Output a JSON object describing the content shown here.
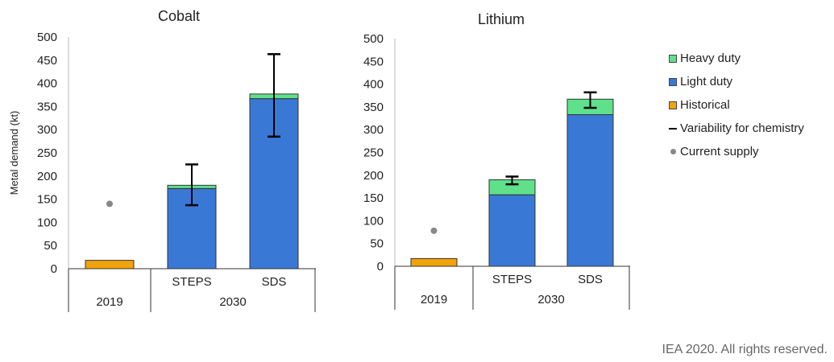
{
  "chart_data": [
    {
      "type": "bar",
      "title": "Cobalt",
      "ylabel": "Metal demand (kt)",
      "ylim": [
        0,
        500
      ],
      "yticks": [
        0,
        50,
        100,
        150,
        200,
        250,
        300,
        350,
        400,
        450,
        500
      ],
      "categories": [
        "",
        "STEPS",
        "SDS"
      ],
      "groups": [
        {
          "label": "2019",
          "categories": [
            ""
          ]
        },
        {
          "label": "2030",
          "categories": [
            "STEPS",
            "SDS"
          ]
        }
      ],
      "series": [
        {
          "name": "Historical",
          "values": [
            18,
            0,
            0
          ]
        },
        {
          "name": "Light duty",
          "values": [
            0,
            173,
            367
          ]
        },
        {
          "name": "Heavy duty",
          "values": [
            0,
            7,
            10
          ]
        }
      ],
      "variability": [
        null,
        [
          137,
          225
        ],
        [
          285,
          463
        ]
      ],
      "current_supply": [
        140,
        null,
        null
      ]
    },
    {
      "type": "bar",
      "title": "Lithium",
      "ylabel": "",
      "ylim": [
        0,
        500
      ],
      "yticks": [
        0,
        50,
        100,
        150,
        200,
        250,
        300,
        350,
        400,
        450,
        500
      ],
      "categories": [
        "",
        "STEPS",
        "SDS"
      ],
      "groups": [
        {
          "label": "2019",
          "categories": [
            ""
          ]
        },
        {
          "label": "2030",
          "categories": [
            "STEPS",
            "SDS"
          ]
        }
      ],
      "series": [
        {
          "name": "Historical",
          "values": [
            17,
            0,
            0
          ]
        },
        {
          "name": "Light duty",
          "values": [
            0,
            157,
            333
          ]
        },
        {
          "name": "Heavy duty",
          "values": [
            0,
            33,
            34
          ]
        }
      ],
      "variability": [
        null,
        [
          180,
          197
        ],
        [
          348,
          382
        ]
      ],
      "current_supply": [
        78,
        null,
        null
      ]
    }
  ],
  "legend": {
    "heavy_duty": "Heavy duty",
    "light_duty": "Light duty",
    "historical": "Historical",
    "variability": "Variability for chemistry",
    "current_supply": "Current supply"
  },
  "colors": {
    "heavy_duty": "#5fe08a",
    "light_duty": "#3a78d6",
    "historical": "#f0a30a",
    "variability": "#000000",
    "current_supply": "#888888"
  },
  "credit": "IEA 2020. All rights reserved."
}
